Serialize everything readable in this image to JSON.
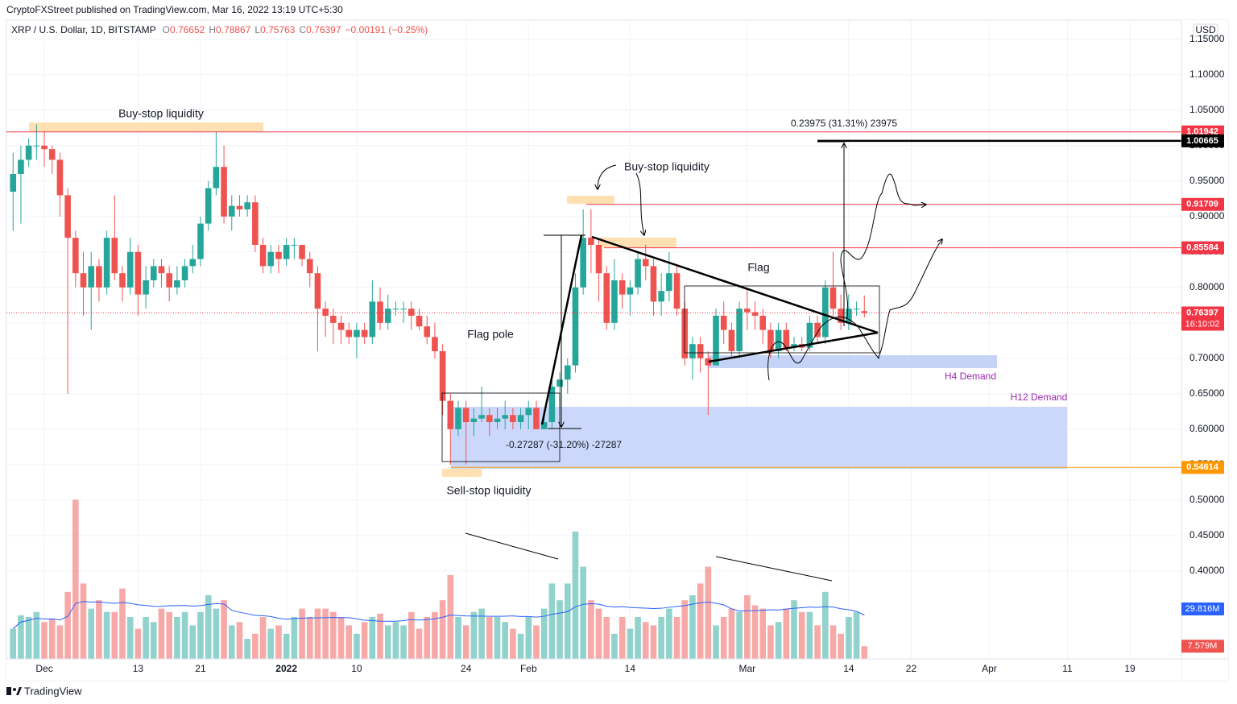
{
  "header": {
    "publisher": "CryptoFXStreet published on TradingView.com, Mar 16, 2022 13:19 UTC+5:30"
  },
  "footer": {
    "brand": "TradingView"
  },
  "chart_data": {
    "type": "candlestick",
    "symbol": "XRP / U.S. Dollar, 1D, BITSTAMP",
    "ohlc_legend": [
      {
        "key": "O",
        "value": "0.76652"
      },
      {
        "key": "H",
        "value": "0.78867"
      },
      {
        "key": "L",
        "value": "0.75763"
      },
      {
        "key": "C",
        "value": "0.76397"
      }
    ],
    "change": "−0.00191 (−0.25%)",
    "currency": "USD",
    "countdown": "16:10:02",
    "up_color": "#26a69a",
    "down_color": "#ef5350",
    "open": [
      0.935,
      0.96,
      0.98,
      1.0,
      1.0,
      0.995,
      0.98,
      0.93,
      0.87,
      0.82,
      0.8,
      0.83,
      0.8,
      0.87,
      0.82,
      0.8,
      0.85,
      0.79,
      0.81,
      0.83,
      0.82,
      0.8,
      0.81,
      0.83,
      0.84,
      0.89,
      0.94,
      0.97,
      0.9,
      0.915,
      0.91,
      0.92,
      0.86,
      0.83,
      0.85,
      0.84,
      0.86,
      0.86,
      0.84,
      0.82,
      0.77,
      0.76,
      0.75,
      0.74,
      0.73,
      0.74,
      0.73,
      0.78,
      0.75,
      0.77,
      0.77,
      0.77,
      0.76,
      0.745,
      0.73,
      0.71,
      0.64,
      0.6,
      0.63,
      0.61,
      0.615,
      0.62,
      0.61,
      0.615,
      0.62,
      0.61,
      0.62,
      0.63,
      0.6,
      0.61,
      0.66,
      0.67,
      0.69,
      0.8,
      0.87,
      0.86,
      0.82,
      0.75,
      0.81,
      0.79,
      0.8,
      0.84,
      0.83,
      0.78,
      0.795,
      0.82,
      0.77,
      0.7,
      0.72,
      0.7,
      0.69,
      0.76,
      0.74,
      0.71,
      0.77,
      0.765,
      0.76,
      0.74,
      0.71,
      0.74,
      0.715,
      0.72,
      0.715,
      0.75,
      0.73,
      0.8,
      0.77,
      0.75,
      0.77,
      0.76652
    ],
    "high": [
      0.99,
      1.0,
      1.01,
      1.03,
      1.02,
      1.0,
      0.99,
      0.94,
      0.88,
      0.85,
      0.85,
      0.84,
      0.88,
      0.93,
      0.83,
      0.87,
      0.86,
      0.83,
      0.84,
      0.84,
      0.83,
      0.83,
      0.84,
      0.86,
      0.9,
      0.95,
      1.02,
      1.0,
      0.93,
      0.93,
      0.93,
      0.93,
      0.87,
      0.86,
      0.86,
      0.87,
      0.87,
      0.86,
      0.85,
      0.83,
      0.78,
      0.77,
      0.76,
      0.75,
      0.75,
      0.75,
      0.81,
      0.8,
      0.79,
      0.78,
      0.78,
      0.78,
      0.77,
      0.76,
      0.75,
      0.72,
      0.65,
      0.64,
      0.64,
      0.63,
      0.66,
      0.63,
      0.63,
      0.64,
      0.63,
      0.63,
      0.64,
      0.64,
      0.62,
      0.67,
      0.68,
      0.7,
      0.82,
      0.91,
      0.91,
      0.87,
      0.83,
      0.84,
      0.82,
      0.81,
      0.85,
      0.86,
      0.84,
      0.82,
      0.85,
      0.83,
      0.78,
      0.73,
      0.73,
      0.71,
      0.77,
      0.78,
      0.75,
      0.78,
      0.8,
      0.78,
      0.77,
      0.75,
      0.75,
      0.75,
      0.73,
      0.73,
      0.76,
      0.76,
      0.81,
      0.85,
      0.79,
      0.79,
      0.78,
      0.78867
    ],
    "low": [
      0.88,
      0.89,
      0.97,
      0.98,
      0.97,
      0.96,
      0.9,
      0.65,
      0.8,
      0.76,
      0.74,
      0.78,
      0.79,
      0.81,
      0.78,
      0.79,
      0.76,
      0.77,
      0.8,
      0.8,
      0.78,
      0.79,
      0.8,
      0.82,
      0.83,
      0.88,
      0.93,
      0.89,
      0.88,
      0.9,
      0.9,
      0.85,
      0.82,
      0.82,
      0.82,
      0.83,
      0.84,
      0.83,
      0.8,
      0.71,
      0.73,
      0.72,
      0.72,
      0.72,
      0.7,
      0.72,
      0.72,
      0.74,
      0.74,
      0.76,
      0.75,
      0.74,
      0.74,
      0.72,
      0.7,
      0.62,
      0.55,
      0.59,
      0.55,
      0.59,
      0.61,
      0.59,
      0.6,
      0.6,
      0.6,
      0.6,
      0.6,
      0.6,
      0.6,
      0.6,
      0.63,
      0.65,
      0.68,
      0.79,
      0.82,
      0.78,
      0.74,
      0.74,
      0.77,
      0.76,
      0.79,
      0.81,
      0.76,
      0.76,
      0.78,
      0.76,
      0.69,
      0.67,
      0.68,
      0.62,
      0.69,
      0.72,
      0.7,
      0.7,
      0.74,
      0.74,
      0.72,
      0.7,
      0.7,
      0.71,
      0.71,
      0.71,
      0.71,
      0.72,
      0.72,
      0.76,
      0.74,
      0.74,
      0.76,
      0.75763
    ],
    "close": [
      0.96,
      0.98,
      1.0,
      1.0,
      0.995,
      0.98,
      0.93,
      0.87,
      0.82,
      0.8,
      0.83,
      0.8,
      0.87,
      0.82,
      0.8,
      0.85,
      0.79,
      0.81,
      0.83,
      0.82,
      0.8,
      0.81,
      0.83,
      0.84,
      0.89,
      0.94,
      0.97,
      0.9,
      0.915,
      0.91,
      0.92,
      0.86,
      0.83,
      0.85,
      0.84,
      0.86,
      0.86,
      0.84,
      0.82,
      0.77,
      0.76,
      0.75,
      0.74,
      0.73,
      0.74,
      0.73,
      0.78,
      0.75,
      0.77,
      0.77,
      0.77,
      0.76,
      0.745,
      0.73,
      0.71,
      0.64,
      0.6,
      0.63,
      0.61,
      0.615,
      0.62,
      0.61,
      0.615,
      0.62,
      0.61,
      0.62,
      0.63,
      0.6,
      0.61,
      0.66,
      0.67,
      0.69,
      0.8,
      0.87,
      0.86,
      0.82,
      0.75,
      0.81,
      0.79,
      0.8,
      0.84,
      0.83,
      0.78,
      0.795,
      0.82,
      0.77,
      0.7,
      0.72,
      0.7,
      0.69,
      0.76,
      0.74,
      0.71,
      0.77,
      0.765,
      0.76,
      0.74,
      0.71,
      0.74,
      0.715,
      0.72,
      0.715,
      0.75,
      0.73,
      0.8,
      0.77,
      0.75,
      0.77,
      0.77,
      0.76397
    ],
    "volume": [
      18,
      26,
      25,
      28,
      22,
      24,
      20,
      40,
      95,
      45,
      30,
      35,
      28,
      28,
      42,
      25,
      18,
      25,
      22,
      30,
      28,
      25,
      28,
      20,
      28,
      38,
      30,
      35,
      20,
      22,
      12,
      15,
      25,
      18,
      20,
      15,
      25,
      30,
      25,
      30,
      30,
      28,
      25,
      20,
      15,
      22,
      25,
      27,
      20,
      22,
      20,
      28,
      18,
      25,
      28,
      35,
      50,
      25,
      20,
      28,
      30,
      25,
      25,
      22,
      18,
      15,
      25,
      20,
      30,
      45,
      35,
      45,
      76,
      55,
      35,
      30,
      25,
      15,
      25,
      18,
      25,
      22,
      20,
      25,
      30,
      25,
      35,
      38,
      45,
      55,
      20,
      25,
      30,
      28,
      38,
      32,
      30,
      20,
      22,
      30,
      35,
      28,
      28,
      20,
      40,
      20,
      15,
      25,
      28,
      7.579
    ],
    "volume_ylim": [
      0,
      100
    ],
    "volume_ma_label": {
      "value": 29.816,
      "label": "29.816M"
    },
    "volume_last_label": {
      "value": 7.579,
      "label": "7.579M"
    },
    "ylim": [
      0.276,
      1.177
    ],
    "yticks": [
      {
        "value": 1.15,
        "label": "1.15000"
      },
      {
        "value": 1.1,
        "label": "1.10000"
      },
      {
        "value": 1.05,
        "label": "1.05000"
      },
      {
        "value": 1.0,
        "label": "1.00000"
      },
      {
        "value": 0.95,
        "label": "0.95000"
      },
      {
        "value": 0.9,
        "label": "0.90000"
      },
      {
        "value": 0.85,
        "label": "0.85000"
      },
      {
        "value": 0.8,
        "label": "0.80000"
      },
      {
        "value": 0.75,
        "label": "0.75000"
      },
      {
        "value": 0.7,
        "label": "0.70000"
      },
      {
        "value": 0.65,
        "label": "0.65000"
      },
      {
        "value": 0.6,
        "label": "0.60000"
      },
      {
        "value": 0.55,
        "label": "0.55000"
      },
      {
        "value": 0.5,
        "label": "0.50000"
      },
      {
        "value": 0.45,
        "label": "0.45000"
      },
      {
        "value": 0.4,
        "label": "0.40000"
      }
    ],
    "xlim": [
      -0.85,
      149.6
    ],
    "xticks": [
      {
        "value": 4,
        "label": "Dec"
      },
      {
        "value": 16,
        "label": "13"
      },
      {
        "value": 24,
        "label": "21"
      },
      {
        "value": 35,
        "label": "2022"
      },
      {
        "value": 44,
        "label": "10"
      },
      {
        "value": 58,
        "label": "24"
      },
      {
        "value": 66,
        "label": "Feb"
      },
      {
        "value": 79,
        "label": "14"
      },
      {
        "value": 94,
        "label": "Mar"
      },
      {
        "value": 107,
        "label": "14"
      },
      {
        "value": 115,
        "label": "22"
      },
      {
        "value": 125,
        "label": "Apr"
      },
      {
        "value": 135,
        "label": "11"
      },
      {
        "value": 143,
        "label": "19"
      }
    ],
    "levels": [
      {
        "value": 1.01942,
        "color": "#f23645"
      },
      {
        "value": 1.00665,
        "color": "#000000"
      },
      {
        "value": 0.91709,
        "color": "#f23645"
      },
      {
        "value": 0.85584,
        "color": "#f23645"
      },
      {
        "value": 0.76397,
        "color": "#f23645"
      },
      {
        "value": 0.54614,
        "color": "#ff9800"
      }
    ],
    "annotations": [
      "Buy-stop liquidity",
      "Buy-stop liquidity",
      "Flag pole",
      "Flag",
      "Sell-stop liquidity",
      "H4 Demand",
      "H12 Demand",
      "0.23975 (31.31%) 23975",
      "-0.27287 (-31.20%) -27287"
    ],
    "grid": true
  }
}
